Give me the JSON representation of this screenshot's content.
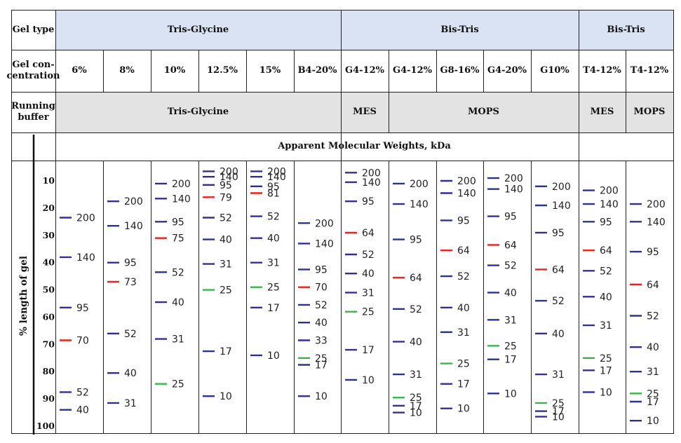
{
  "row_labels": {
    "gel_type": "Gel type",
    "gel_concentration": "Gel con-\ncentration",
    "running_buffer": "Running\nbuffer"
  },
  "gel_types": [
    "Tris-Glycine",
    "Bis-Tris",
    "Bis-Tris"
  ],
  "running_buffers": [
    "Tris-Glycine",
    "MES",
    "MOPS",
    "MES",
    "MOPS"
  ],
  "apparent_mw_header": "Apparent Molecular Weights, kDa",
  "colors": {
    "standard": "#2e3192",
    "reference_red": "#e8231f",
    "reference_green": "#3ab54a",
    "blue_header": "#dae3f3",
    "gray_header": "#e3e3e3"
  },
  "chart_data": {
    "type": "table",
    "ylabel": "% length of gel",
    "y_ticks": [
      "10",
      "20",
      "30",
      "40",
      "50",
      "60",
      "70",
      "80",
      "90",
      "100"
    ],
    "ylim": [
      3,
      100
    ],
    "columns": [
      {
        "concentration": "6%",
        "bands": [
          {
            "kDa": "200",
            "pct": 23.5,
            "color": "blue"
          },
          {
            "kDa": "140",
            "pct": 38,
            "color": "blue"
          },
          {
            "kDa": "95",
            "pct": 56.5,
            "color": "blue"
          },
          {
            "kDa": "70",
            "pct": 68.5,
            "color": "red"
          },
          {
            "kDa": "52",
            "pct": 87.5,
            "color": "blue"
          },
          {
            "kDa": "40",
            "pct": 94,
            "color": "blue"
          }
        ]
      },
      {
        "concentration": "8%",
        "bands": [
          {
            "kDa": "200",
            "pct": 17.5,
            "color": "blue"
          },
          {
            "kDa": "140",
            "pct": 26.5,
            "color": "blue"
          },
          {
            "kDa": "95",
            "pct": 40,
            "color": "blue"
          },
          {
            "kDa": "73",
            "pct": 47,
            "color": "red"
          },
          {
            "kDa": "52",
            "pct": 66,
            "color": "blue"
          },
          {
            "kDa": "40",
            "pct": 80.5,
            "color": "blue"
          },
          {
            "kDa": "31",
            "pct": 91.5,
            "color": "blue"
          }
        ]
      },
      {
        "concentration": "10%",
        "bands": [
          {
            "kDa": "200",
            "pct": 11,
            "color": "blue"
          },
          {
            "kDa": "140",
            "pct": 16.5,
            "color": "blue"
          },
          {
            "kDa": "95",
            "pct": 25,
            "color": "blue"
          },
          {
            "kDa": "75",
            "pct": 31,
            "color": "red"
          },
          {
            "kDa": "52",
            "pct": 43.5,
            "color": "blue"
          },
          {
            "kDa": "40",
            "pct": 54.5,
            "color": "blue"
          },
          {
            "kDa": "31",
            "pct": 68,
            "color": "blue"
          },
          {
            "kDa": "25",
            "pct": 84.5,
            "color": "green"
          }
        ]
      },
      {
        "concentration": "12.5%",
        "bands": [
          {
            "kDa": "200",
            "pct": 6.5,
            "color": "blue"
          },
          {
            "kDa": "140",
            "pct": 8.5,
            "color": "blue"
          },
          {
            "kDa": "95",
            "pct": 11.5,
            "color": "blue"
          },
          {
            "kDa": "79",
            "pct": 16,
            "color": "red"
          },
          {
            "kDa": "52",
            "pct": 23.5,
            "color": "blue"
          },
          {
            "kDa": "40",
            "pct": 31.5,
            "color": "blue"
          },
          {
            "kDa": "31",
            "pct": 40.5,
            "color": "blue"
          },
          {
            "kDa": "25",
            "pct": 50,
            "color": "green"
          },
          {
            "kDa": "17",
            "pct": 72.5,
            "color": "blue"
          },
          {
            "kDa": "10",
            "pct": 89,
            "color": "blue"
          }
        ]
      },
      {
        "concentration": "15%",
        "bands": [
          {
            "kDa": "200",
            "pct": 6.5,
            "color": "blue"
          },
          {
            "kDa": "140",
            "pct": 8.5,
            "color": "blue"
          },
          {
            "kDa": "95",
            "pct": 12,
            "color": "blue"
          },
          {
            "kDa": "81",
            "pct": 14.5,
            "color": "red"
          },
          {
            "kDa": "52",
            "pct": 23,
            "color": "blue"
          },
          {
            "kDa": "40",
            "pct": 31,
            "color": "blue"
          },
          {
            "kDa": "31",
            "pct": 40,
            "color": "blue"
          },
          {
            "kDa": "25",
            "pct": 49,
            "color": "green"
          },
          {
            "kDa": "17",
            "pct": 56.5,
            "color": "blue"
          },
          {
            "kDa": "10",
            "pct": 74,
            "color": "blue"
          }
        ]
      },
      {
        "concentration": "B4-20%",
        "bands": [
          {
            "kDa": "200",
            "pct": 25.5,
            "color": "blue"
          },
          {
            "kDa": "140",
            "pct": 33,
            "color": "blue"
          },
          {
            "kDa": "95",
            "pct": 42.5,
            "color": "blue"
          },
          {
            "kDa": "70",
            "pct": 49,
            "color": "red"
          },
          {
            "kDa": "52",
            "pct": 55.5,
            "color": "blue"
          },
          {
            "kDa": "40",
            "pct": 62,
            "color": "blue"
          },
          {
            "kDa": "33",
            "pct": 68.5,
            "color": "blue"
          },
          {
            "kDa": "25",
            "pct": 75,
            "color": "green"
          },
          {
            "kDa": "17",
            "pct": 77.5,
            "color": "blue"
          },
          {
            "kDa": "10",
            "pct": 89,
            "color": "blue"
          }
        ]
      },
      {
        "concentration": "G4-12%",
        "bands": [
          {
            "kDa": "200",
            "pct": 7,
            "color": "blue"
          },
          {
            "kDa": "140",
            "pct": 10.5,
            "color": "blue"
          },
          {
            "kDa": "95",
            "pct": 17.5,
            "color": "blue"
          },
          {
            "kDa": "64",
            "pct": 29,
            "color": "red"
          },
          {
            "kDa": "52",
            "pct": 37,
            "color": "blue"
          },
          {
            "kDa": "40",
            "pct": 44,
            "color": "blue"
          },
          {
            "kDa": "31",
            "pct": 51,
            "color": "blue"
          },
          {
            "kDa": "25",
            "pct": 58,
            "color": "green"
          },
          {
            "kDa": "17",
            "pct": 72,
            "color": "blue"
          },
          {
            "kDa": "10",
            "pct": 83,
            "color": "blue"
          }
        ]
      },
      {
        "concentration": "G4-12%",
        "bands": [
          {
            "kDa": "200",
            "pct": 11,
            "color": "blue"
          },
          {
            "kDa": "140",
            "pct": 18.5,
            "color": "blue"
          },
          {
            "kDa": "95",
            "pct": 31.5,
            "color": "blue"
          },
          {
            "kDa": "64",
            "pct": 45.5,
            "color": "red"
          },
          {
            "kDa": "52",
            "pct": 57,
            "color": "blue"
          },
          {
            "kDa": "40",
            "pct": 69,
            "color": "blue"
          },
          {
            "kDa": "31",
            "pct": 81,
            "color": "blue"
          },
          {
            "kDa": "25",
            "pct": 89.5,
            "color": "green"
          },
          {
            "kDa": "17",
            "pct": 92.5,
            "color": "blue"
          },
          {
            "kDa": "10",
            "pct": 95,
            "color": "blue"
          }
        ]
      },
      {
        "concentration": "G8-16%",
        "bands": [
          {
            "kDa": "200",
            "pct": 10,
            "color": "blue"
          },
          {
            "kDa": "140",
            "pct": 14.5,
            "color": "blue"
          },
          {
            "kDa": "95",
            "pct": 24.5,
            "color": "blue"
          },
          {
            "kDa": "64",
            "pct": 35.5,
            "color": "red"
          },
          {
            "kDa": "52",
            "pct": 45,
            "color": "blue"
          },
          {
            "kDa": "40",
            "pct": 56.5,
            "color": "blue"
          },
          {
            "kDa": "31",
            "pct": 65.5,
            "color": "blue"
          },
          {
            "kDa": "25",
            "pct": 77,
            "color": "green"
          },
          {
            "kDa": "17",
            "pct": 84.5,
            "color": "blue"
          },
          {
            "kDa": "10",
            "pct": 93.5,
            "color": "blue"
          }
        ]
      },
      {
        "concentration": "G4-20%",
        "bands": [
          {
            "kDa": "200",
            "pct": 9,
            "color": "blue"
          },
          {
            "kDa": "140",
            "pct": 13,
            "color": "blue"
          },
          {
            "kDa": "95",
            "pct": 23,
            "color": "blue"
          },
          {
            "kDa": "64",
            "pct": 33.5,
            "color": "red"
          },
          {
            "kDa": "52",
            "pct": 41,
            "color": "blue"
          },
          {
            "kDa": "40",
            "pct": 51,
            "color": "blue"
          },
          {
            "kDa": "31",
            "pct": 61,
            "color": "blue"
          },
          {
            "kDa": "25",
            "pct": 70.5,
            "color": "green"
          },
          {
            "kDa": "17",
            "pct": 75.5,
            "color": "blue"
          },
          {
            "kDa": "10",
            "pct": 88,
            "color": "blue"
          }
        ]
      },
      {
        "concentration": "G10%",
        "bands": [
          {
            "kDa": "200",
            "pct": 12,
            "color": "blue"
          },
          {
            "kDa": "140",
            "pct": 19,
            "color": "blue"
          },
          {
            "kDa": "95",
            "pct": 29,
            "color": "blue"
          },
          {
            "kDa": "64",
            "pct": 42.5,
            "color": "red"
          },
          {
            "kDa": "52",
            "pct": 54,
            "color": "blue"
          },
          {
            "kDa": "40",
            "pct": 66,
            "color": "blue"
          },
          {
            "kDa": "31",
            "pct": 81,
            "color": "blue"
          },
          {
            "kDa": "25",
            "pct": 91.5,
            "color": "green"
          },
          {
            "kDa": "17",
            "pct": 94.5,
            "color": "blue"
          },
          {
            "kDa": "10",
            "pct": 96.5,
            "color": "blue"
          }
        ]
      },
      {
        "concentration": "T4-12%",
        "bands": [
          {
            "kDa": "200",
            "pct": 13.5,
            "color": "blue"
          },
          {
            "kDa": "140",
            "pct": 18.5,
            "color": "blue"
          },
          {
            "kDa": "95",
            "pct": 25,
            "color": "blue"
          },
          {
            "kDa": "64",
            "pct": 35.5,
            "color": "red"
          },
          {
            "kDa": "52",
            "pct": 43,
            "color": "blue"
          },
          {
            "kDa": "40",
            "pct": 52.5,
            "color": "blue"
          },
          {
            "kDa": "31",
            "pct": 63,
            "color": "blue"
          },
          {
            "kDa": "25",
            "pct": 75,
            "color": "green"
          },
          {
            "kDa": "17",
            "pct": 79.5,
            "color": "blue"
          },
          {
            "kDa": "10",
            "pct": 87.5,
            "color": "blue"
          }
        ]
      },
      {
        "concentration": "T4-12%",
        "bands": [
          {
            "kDa": "200",
            "pct": 18.5,
            "color": "blue"
          },
          {
            "kDa": "140",
            "pct": 25,
            "color": "blue"
          },
          {
            "kDa": "95",
            "pct": 36,
            "color": "blue"
          },
          {
            "kDa": "64",
            "pct": 48,
            "color": "red"
          },
          {
            "kDa": "52",
            "pct": 59.5,
            "color": "blue"
          },
          {
            "kDa": "40",
            "pct": 71,
            "color": "blue"
          },
          {
            "kDa": "31",
            "pct": 80,
            "color": "blue"
          },
          {
            "kDa": "25",
            "pct": 88,
            "color": "green"
          },
          {
            "kDa": "17",
            "pct": 91,
            "color": "blue"
          },
          {
            "kDa": "10",
            "pct": 98,
            "color": "blue"
          }
        ]
      }
    ]
  }
}
